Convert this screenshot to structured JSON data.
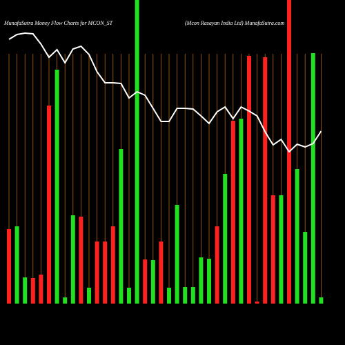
{
  "chart_data": {
    "type": "bar",
    "title": "MunafaSutra  Money  Flow  Charts for MCON_ST",
    "subtitle": "(Mcon  Rasayan  India  Ltd) MunafaSutra.com",
    "ylim": [
      0,
      440
    ],
    "line_color": "#ffffff",
    "grid_color": "#b8660b",
    "series": [
      {
        "name": null,
        "type": "bar",
        "colors": [
          "#ff2020",
          "#20e020",
          "#20e020",
          "#ff2020",
          "#ff2020",
          "#ff2020",
          "#20e020",
          "#20e020",
          "#20e020",
          "#ff2020",
          "#20e020",
          "#ff2020",
          "#ff2020",
          "#ff2020",
          "#20e020",
          "#20e020",
          "#20e020",
          "#ff2020",
          "#20e020",
          "#ff2020",
          "#20e020",
          "#20e020",
          "#20e020",
          "#20e020",
          "#20e020",
          "#20e020",
          "#ff2020",
          "#20e020",
          "#ff2020",
          "#20e020",
          "#ff2020",
          "#ff2020",
          "#ff2020",
          "#ff2020",
          "#20e020",
          "#ff2020",
          "#20e020",
          "#20e020",
          "#20e020",
          "#20e020"
        ],
        "values": [
          108,
          112,
          38,
          37,
          42,
          287,
          339,
          9,
          128,
          126,
          23,
          90,
          90,
          112,
          224,
          23,
          440,
          64,
          63,
          90,
          23,
          143,
          24,
          24,
          67,
          65,
          112,
          188,
          265,
          268,
          359,
          3,
          357,
          157,
          157,
          440,
          195,
          104,
          363,
          9
        ]
      },
      {
        "name": null,
        "type": "line",
        "values": [
          383,
          390,
          392,
          391,
          376,
          357,
          368,
          349,
          369,
          373,
          361,
          336,
          320,
          320,
          319,
          298,
          307,
          302,
          283,
          264,
          264,
          283,
          283,
          282,
          272,
          261,
          278,
          285,
          268,
          285,
          279,
          272,
          249,
          230,
          238,
          220,
          231,
          227,
          232,
          250
        ]
      }
    ]
  }
}
